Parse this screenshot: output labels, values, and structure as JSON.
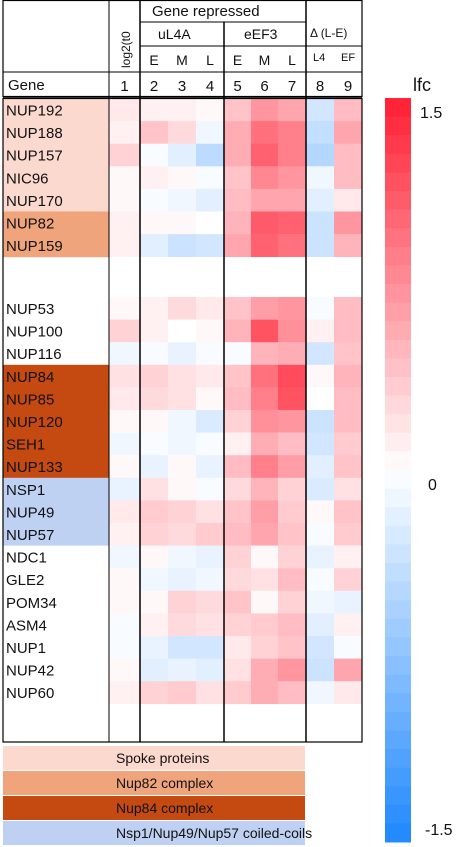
{
  "chart_data": {
    "type": "heatmap",
    "header": {
      "group_title": "Gene repressed",
      "subgroups": [
        "uL4A",
        "eEF3"
      ],
      "time_labels": [
        "E",
        "M",
        "L",
        "E",
        "M",
        "L"
      ],
      "col0_label": "log2(t0",
      "delta_label": "Δ (L-E)",
      "delta_sub": [
        "L4",
        "EF"
      ],
      "gene_header": "Gene",
      "col_numbers": [
        "1",
        "2",
        "3",
        "4",
        "5",
        "6",
        "7",
        "8",
        "9"
      ]
    },
    "genes": [
      {
        "name": "NUP192",
        "group": "spoke"
      },
      {
        "name": "NUP188",
        "group": "spoke"
      },
      {
        "name": "NUP157",
        "group": "spoke"
      },
      {
        "name": "NIC96",
        "group": "spoke"
      },
      {
        "name": "NUP170",
        "group": "spoke"
      },
      {
        "name": "NUP82",
        "group": "nup82"
      },
      {
        "name": "NUP159",
        "group": "nup82"
      },
      {
        "name": "NUP53",
        "group": "none"
      },
      {
        "name": "NUP100",
        "group": "none"
      },
      {
        "name": "NUP116",
        "group": "none"
      },
      {
        "name": "NUP84",
        "group": "nup84"
      },
      {
        "name": "NUP85",
        "group": "nup84"
      },
      {
        "name": "NUP120",
        "group": "nup84"
      },
      {
        "name": "SEH1",
        "group": "nup84"
      },
      {
        "name": "NUP133",
        "group": "nup84"
      },
      {
        "name": "NSP1",
        "group": "nsp1"
      },
      {
        "name": "NUP49",
        "group": "nsp1"
      },
      {
        "name": "NUP57",
        "group": "nsp1"
      },
      {
        "name": "NDC1",
        "group": "none"
      },
      {
        "name": "GLE2",
        "group": "none"
      },
      {
        "name": "POM34",
        "group": "none"
      },
      {
        "name": "ASM4",
        "group": "none"
      },
      {
        "name": "NUP1",
        "group": "none"
      },
      {
        "name": "NUP42",
        "group": "none"
      },
      {
        "name": "NUP60",
        "group": "none"
      }
    ],
    "values": [
      [
        0.15,
        0.1,
        0.1,
        0.05,
        0.4,
        0.7,
        0.6,
        -0.3,
        0.45
      ],
      [
        0.1,
        0.4,
        0.25,
        -0.1,
        0.55,
        0.95,
        0.85,
        -0.4,
        0.6
      ],
      [
        0.3,
        -0.05,
        -0.2,
        -0.45,
        0.55,
        1.05,
        0.85,
        -0.5,
        0.45
      ],
      [
        0.05,
        0.1,
        0.05,
        -0.05,
        0.4,
        0.8,
        0.7,
        -0.1,
        0.45
      ],
      [
        0.05,
        -0.05,
        -0.1,
        -0.2,
        0.45,
        0.6,
        0.6,
        -0.2,
        0.15
      ],
      [
        0.1,
        0.05,
        0.05,
        0.0,
        0.5,
        1.1,
        1.05,
        -0.35,
        0.7
      ],
      [
        0.1,
        -0.2,
        -0.35,
        -0.3,
        0.6,
        1.05,
        0.95,
        -0.35,
        0.5
      ],
      [
        0.05,
        0.1,
        0.25,
        0.15,
        0.4,
        0.65,
        0.7,
        -0.05,
        0.45
      ],
      [
        0.3,
        0.1,
        0.0,
        0.05,
        0.5,
        1.15,
        0.75,
        0.1,
        0.45
      ],
      [
        -0.1,
        -0.05,
        -0.15,
        -0.05,
        -0.05,
        0.5,
        0.55,
        -0.3,
        0.4
      ],
      [
        0.2,
        0.3,
        0.2,
        0.15,
        0.4,
        0.95,
        1.2,
        0.05,
        0.5
      ],
      [
        0.15,
        0.25,
        0.2,
        0.05,
        0.45,
        0.85,
        1.15,
        0.0,
        0.45
      ],
      [
        0.05,
        0.05,
        -0.1,
        -0.25,
        0.3,
        0.75,
        0.7,
        -0.35,
        0.45
      ],
      [
        -0.1,
        -0.05,
        -0.1,
        -0.05,
        0.1,
        0.55,
        0.45,
        -0.3,
        0.35
      ],
      [
        0.05,
        -0.15,
        0.05,
        -0.15,
        0.45,
        0.85,
        0.65,
        -0.2,
        0.4
      ],
      [
        -0.15,
        0.2,
        0.05,
        -0.05,
        0.25,
        0.5,
        0.3,
        -0.25,
        0.2
      ],
      [
        0.15,
        0.35,
        0.3,
        0.2,
        0.4,
        0.65,
        0.35,
        0.05,
        0.4
      ],
      [
        0.1,
        0.3,
        0.25,
        0.35,
        0.45,
        0.6,
        0.4,
        -0.05,
        0.35
      ],
      [
        -0.1,
        0.05,
        -0.1,
        -0.15,
        0.3,
        0.05,
        0.3,
        -0.15,
        0.1
      ],
      [
        0.05,
        -0.1,
        -0.15,
        -0.1,
        0.25,
        0.2,
        0.45,
        -0.05,
        0.3
      ],
      [
        0.05,
        0.05,
        0.3,
        0.25,
        0.4,
        0.05,
        0.3,
        -0.1,
        -0.15
      ],
      [
        -0.05,
        0.1,
        0.25,
        0.2,
        0.3,
        0.35,
        0.45,
        -0.2,
        0.1
      ],
      [
        -0.05,
        -0.15,
        -0.3,
        -0.3,
        0.15,
        0.3,
        0.4,
        -0.3,
        -0.05
      ],
      [
        0.05,
        -0.2,
        -0.15,
        -0.2,
        0.2,
        0.55,
        0.7,
        -0.35,
        0.6
      ],
      [
        0.1,
        0.3,
        0.35,
        0.2,
        0.35,
        0.55,
        0.45,
        -0.1,
        0.15
      ]
    ],
    "colorbar": {
      "label": "lfc",
      "max": 1.5,
      "mid": 0,
      "min": -1.5,
      "tick_labels": [
        "1.5",
        "0",
        "-1.5"
      ]
    },
    "legend": [
      {
        "label": "Spoke proteins",
        "color": "#fbd9cf"
      },
      {
        "label": "Nup82 complex",
        "color": "#f0a47c"
      },
      {
        "label": "Nup84 complex",
        "color": "#c44a12"
      },
      {
        "label": "Nsp1/Nup49/Nup57 coiled-coils",
        "color": "#bfd1f2"
      }
    ],
    "group_colors": {
      "spoke": "#fbd9cf",
      "nup82": "#f0a47c",
      "nup84": "#c44a12",
      "nsp1": "#bfd1f2",
      "none": "#ffffff"
    }
  }
}
